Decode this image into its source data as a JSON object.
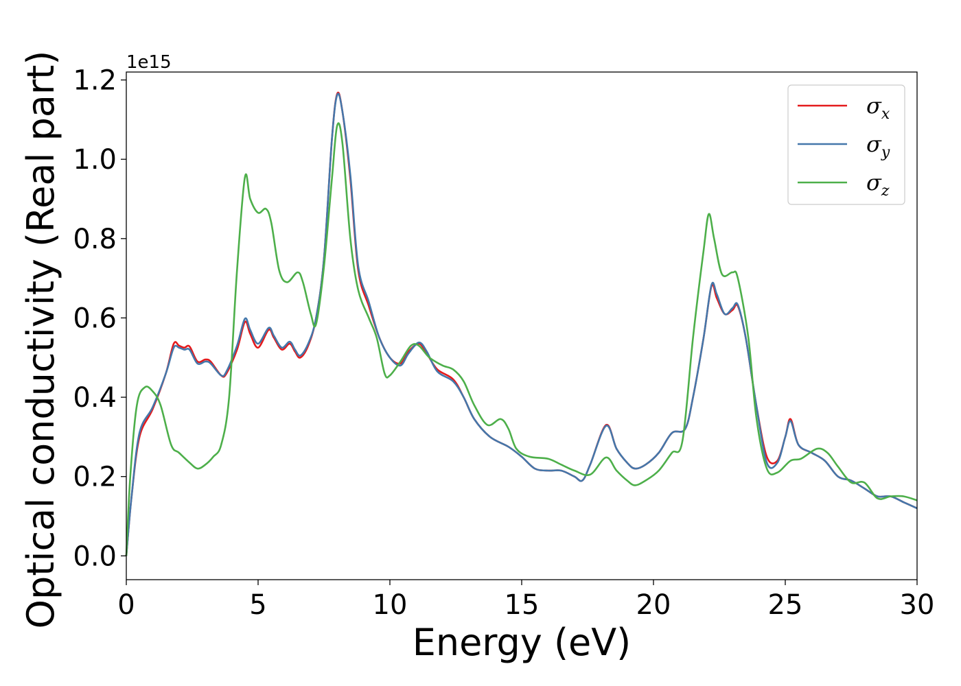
{
  "chart_data": {
    "type": "line",
    "xlabel": "Energy (eV)",
    "ylabel": "Optical conductivity (Real part)",
    "y_offset_label": "1e15",
    "xlim": [
      0,
      30
    ],
    "ylim": [
      -0.06,
      1.22
    ],
    "xticks": [
      0,
      5,
      10,
      15,
      20,
      25,
      30
    ],
    "xtick_labels": [
      "0",
      "5",
      "10",
      "15",
      "20",
      "25",
      "30"
    ],
    "yticks": [
      0.0,
      0.2,
      0.4,
      0.6,
      0.8,
      1.0,
      1.2
    ],
    "ytick_labels": [
      "0.0",
      "0.2",
      "0.4",
      "0.6",
      "0.8",
      "1.0",
      "1.2"
    ],
    "grid": false,
    "legend_position": "top-right",
    "series": [
      {
        "name": "σx",
        "label_main": "σ",
        "label_sub": "x",
        "color": "#e41a1c",
        "points": [
          [
            0,
            0
          ],
          [
            0.2,
            0.15
          ],
          [
            0.5,
            0.3
          ],
          [
            1,
            0.37
          ],
          [
            1.5,
            0.46
          ],
          [
            1.8,
            0.535
          ],
          [
            2,
            0.53
          ],
          [
            2.2,
            0.525
          ],
          [
            2.4,
            0.528
          ],
          [
            2.7,
            0.49
          ],
          [
            3,
            0.495
          ],
          [
            3.2,
            0.49
          ],
          [
            3.6,
            0.455
          ],
          [
            3.8,
            0.46
          ],
          [
            4.2,
            0.52
          ],
          [
            4.5,
            0.59
          ],
          [
            4.7,
            0.56
          ],
          [
            5,
            0.525
          ],
          [
            5.4,
            0.57
          ],
          [
            5.6,
            0.55
          ],
          [
            5.9,
            0.52
          ],
          [
            6.2,
            0.535
          ],
          [
            6.4,
            0.515
          ],
          [
            6.6,
            0.5
          ],
          [
            6.9,
            0.53
          ],
          [
            7.2,
            0.6
          ],
          [
            7.5,
            0.75
          ],
          [
            7.8,
            1.05
          ],
          [
            8,
            1.165
          ],
          [
            8.2,
            1.12
          ],
          [
            8.5,
            0.95
          ],
          [
            8.8,
            0.72
          ],
          [
            9.2,
            0.63
          ],
          [
            9.6,
            0.55
          ],
          [
            10,
            0.5
          ],
          [
            10.4,
            0.485
          ],
          [
            10.7,
            0.515
          ],
          [
            11.1,
            0.535
          ],
          [
            11.4,
            0.51
          ],
          [
            11.8,
            0.47
          ],
          [
            12.4,
            0.445
          ],
          [
            12.8,
            0.4
          ],
          [
            13.2,
            0.345
          ],
          [
            13.8,
            0.3
          ],
          [
            14.5,
            0.275
          ],
          [
            15,
            0.25
          ],
          [
            15.5,
            0.22
          ],
          [
            16,
            0.215
          ],
          [
            16.5,
            0.215
          ],
          [
            17,
            0.2
          ],
          [
            17.3,
            0.19
          ],
          [
            17.6,
            0.23
          ],
          [
            18.2,
            0.33
          ],
          [
            18.6,
            0.27
          ],
          [
            19,
            0.235
          ],
          [
            19.3,
            0.22
          ],
          [
            19.7,
            0.23
          ],
          [
            20.2,
            0.26
          ],
          [
            20.7,
            0.31
          ],
          [
            21.2,
            0.32
          ],
          [
            21.5,
            0.4
          ],
          [
            21.9,
            0.55
          ],
          [
            22.2,
            0.68
          ],
          [
            22.4,
            0.65
          ],
          [
            22.7,
            0.61
          ],
          [
            23,
            0.62
          ],
          [
            23.2,
            0.63
          ],
          [
            23.5,
            0.55
          ],
          [
            23.9,
            0.38
          ],
          [
            24.3,
            0.25
          ],
          [
            24.7,
            0.24
          ],
          [
            25,
            0.3
          ],
          [
            25.2,
            0.345
          ],
          [
            25.5,
            0.28
          ],
          [
            26,
            0.26
          ],
          [
            26.5,
            0.24
          ],
          [
            27,
            0.2
          ],
          [
            27.5,
            0.19
          ],
          [
            28,
            0.17
          ],
          [
            28.5,
            0.15
          ],
          [
            29,
            0.15
          ],
          [
            29.5,
            0.135
          ],
          [
            30,
            0.12
          ]
        ]
      },
      {
        "name": "σy",
        "label_main": "σ",
        "label_sub": "y",
        "color": "#4477aa",
        "points": [
          [
            0,
            0
          ],
          [
            0.2,
            0.15
          ],
          [
            0.5,
            0.31
          ],
          [
            1,
            0.375
          ],
          [
            1.5,
            0.46
          ],
          [
            1.8,
            0.525
          ],
          [
            2,
            0.525
          ],
          [
            2.2,
            0.52
          ],
          [
            2.4,
            0.52
          ],
          [
            2.7,
            0.485
          ],
          [
            3,
            0.49
          ],
          [
            3.2,
            0.485
          ],
          [
            3.6,
            0.455
          ],
          [
            3.8,
            0.465
          ],
          [
            4.2,
            0.53
          ],
          [
            4.5,
            0.598
          ],
          [
            4.7,
            0.57
          ],
          [
            5,
            0.535
          ],
          [
            5.4,
            0.575
          ],
          [
            5.6,
            0.555
          ],
          [
            5.9,
            0.525
          ],
          [
            6.2,
            0.54
          ],
          [
            6.4,
            0.52
          ],
          [
            6.6,
            0.505
          ],
          [
            6.9,
            0.535
          ],
          [
            7.2,
            0.6
          ],
          [
            7.5,
            0.75
          ],
          [
            7.8,
            1.05
          ],
          [
            8,
            1.162
          ],
          [
            8.2,
            1.12
          ],
          [
            8.5,
            0.96
          ],
          [
            8.8,
            0.73
          ],
          [
            9.2,
            0.64
          ],
          [
            9.6,
            0.55
          ],
          [
            10,
            0.5
          ],
          [
            10.4,
            0.48
          ],
          [
            10.7,
            0.51
          ],
          [
            11.1,
            0.538
          ],
          [
            11.4,
            0.515
          ],
          [
            11.8,
            0.465
          ],
          [
            12.4,
            0.44
          ],
          [
            12.8,
            0.4
          ],
          [
            13.2,
            0.345
          ],
          [
            13.8,
            0.3
          ],
          [
            14.5,
            0.275
          ],
          [
            15,
            0.25
          ],
          [
            15.5,
            0.22
          ],
          [
            16,
            0.215
          ],
          [
            16.5,
            0.215
          ],
          [
            17,
            0.2
          ],
          [
            17.3,
            0.19
          ],
          [
            17.6,
            0.23
          ],
          [
            18.2,
            0.328
          ],
          [
            18.6,
            0.27
          ],
          [
            19,
            0.235
          ],
          [
            19.3,
            0.22
          ],
          [
            19.7,
            0.23
          ],
          [
            20.2,
            0.26
          ],
          [
            20.7,
            0.31
          ],
          [
            21.2,
            0.32
          ],
          [
            21.5,
            0.4
          ],
          [
            21.9,
            0.55
          ],
          [
            22.2,
            0.683
          ],
          [
            22.4,
            0.66
          ],
          [
            22.7,
            0.61
          ],
          [
            23,
            0.625
          ],
          [
            23.2,
            0.633
          ],
          [
            23.5,
            0.55
          ],
          [
            23.9,
            0.38
          ],
          [
            24.3,
            0.235
          ],
          [
            24.7,
            0.235
          ],
          [
            25,
            0.3
          ],
          [
            25.2,
            0.34
          ],
          [
            25.5,
            0.28
          ],
          [
            26,
            0.26
          ],
          [
            26.5,
            0.24
          ],
          [
            27,
            0.2
          ],
          [
            27.5,
            0.19
          ],
          [
            28,
            0.17
          ],
          [
            28.5,
            0.15
          ],
          [
            29,
            0.15
          ],
          [
            29.5,
            0.135
          ],
          [
            30,
            0.12
          ]
        ]
      },
      {
        "name": "σz",
        "label_main": "σ",
        "label_sub": "z",
        "color": "#4daf4a",
        "points": [
          [
            0,
            0
          ],
          [
            0.15,
            0.2
          ],
          [
            0.4,
            0.38
          ],
          [
            0.7,
            0.425
          ],
          [
            1,
            0.415
          ],
          [
            1.3,
            0.38
          ],
          [
            1.7,
            0.28
          ],
          [
            2,
            0.26
          ],
          [
            2.4,
            0.235
          ],
          [
            2.7,
            0.22
          ],
          [
            3,
            0.23
          ],
          [
            3.3,
            0.25
          ],
          [
            3.6,
            0.28
          ],
          [
            3.9,
            0.4
          ],
          [
            4.2,
            0.72
          ],
          [
            4.5,
            0.955
          ],
          [
            4.7,
            0.9
          ],
          [
            5,
            0.865
          ],
          [
            5.3,
            0.875
          ],
          [
            5.5,
            0.84
          ],
          [
            5.8,
            0.72
          ],
          [
            6.1,
            0.69
          ],
          [
            6.5,
            0.715
          ],
          [
            6.7,
            0.69
          ],
          [
            7,
            0.61
          ],
          [
            7.2,
            0.585
          ],
          [
            7.5,
            0.73
          ],
          [
            7.8,
            0.95
          ],
          [
            8,
            1.085
          ],
          [
            8.2,
            1.04
          ],
          [
            8.5,
            0.8
          ],
          [
            8.8,
            0.67
          ],
          [
            9.2,
            0.6
          ],
          [
            9.5,
            0.55
          ],
          [
            9.8,
            0.46
          ],
          [
            10,
            0.455
          ],
          [
            10.4,
            0.49
          ],
          [
            10.8,
            0.53
          ],
          [
            11.1,
            0.53
          ],
          [
            11.5,
            0.5
          ],
          [
            12,
            0.48
          ],
          [
            12.4,
            0.47
          ],
          [
            12.8,
            0.44
          ],
          [
            13.2,
            0.38
          ],
          [
            13.7,
            0.33
          ],
          [
            14.2,
            0.345
          ],
          [
            14.5,
            0.32
          ],
          [
            14.8,
            0.27
          ],
          [
            15.3,
            0.25
          ],
          [
            16,
            0.245
          ],
          [
            16.5,
            0.23
          ],
          [
            17,
            0.215
          ],
          [
            17.6,
            0.205
          ],
          [
            18.2,
            0.248
          ],
          [
            18.6,
            0.215
          ],
          [
            19,
            0.19
          ],
          [
            19.3,
            0.178
          ],
          [
            19.7,
            0.19
          ],
          [
            20.2,
            0.215
          ],
          [
            20.7,
            0.26
          ],
          [
            21.1,
            0.29
          ],
          [
            21.5,
            0.55
          ],
          [
            21.9,
            0.77
          ],
          [
            22.1,
            0.862
          ],
          [
            22.3,
            0.8
          ],
          [
            22.6,
            0.71
          ],
          [
            23,
            0.715
          ],
          [
            23.2,
            0.7
          ],
          [
            23.6,
            0.55
          ],
          [
            23.9,
            0.35
          ],
          [
            24.3,
            0.22
          ],
          [
            24.7,
            0.21
          ],
          [
            25.2,
            0.24
          ],
          [
            25.6,
            0.245
          ],
          [
            26.2,
            0.27
          ],
          [
            26.6,
            0.26
          ],
          [
            27,
            0.225
          ],
          [
            27.5,
            0.185
          ],
          [
            28,
            0.185
          ],
          [
            28.5,
            0.145
          ],
          [
            29,
            0.15
          ],
          [
            29.5,
            0.15
          ],
          [
            30,
            0.14
          ]
        ]
      }
    ]
  }
}
